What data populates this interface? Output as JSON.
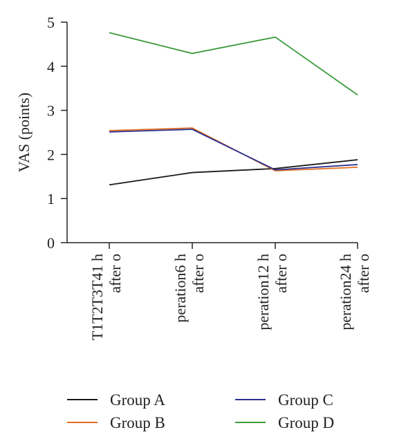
{
  "chart_data": {
    "type": "line",
    "title": "",
    "xlabel": "",
    "ylabel": "VAS (points)",
    "ylim": [
      0,
      5
    ],
    "yticks": [
      0,
      1,
      2,
      3,
      4,
      5
    ],
    "categories": [
      [
        "T1T2T3T41 h",
        "after o"
      ],
      [
        "peration6 h",
        "after o"
      ],
      [
        "peration12 h",
        "after o"
      ],
      [
        "peration24 h",
        "after o"
      ]
    ],
    "series": [
      {
        "name": "Group A",
        "color": "#1a1a1a",
        "values": [
          1.31,
          1.59,
          1.68,
          1.88
        ]
      },
      {
        "name": "Group B",
        "color": "#e06c1f",
        "values": [
          2.54,
          2.6,
          1.63,
          1.71
        ]
      },
      {
        "name": "Group C",
        "color": "#2a2f8f",
        "values": [
          2.51,
          2.57,
          1.65,
          1.77
        ]
      },
      {
        "name": "Group D",
        "color": "#3a9a3a",
        "values": [
          4.76,
          4.29,
          4.66,
          3.35
        ]
      }
    ],
    "legend_position": "bottom",
    "grid": false
  }
}
